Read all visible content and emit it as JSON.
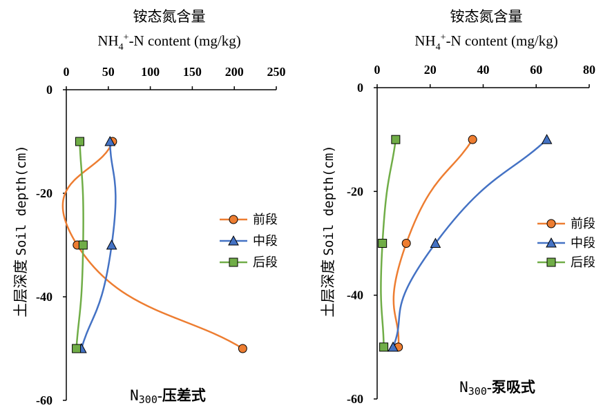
{
  "colors": {
    "front": "#ED7D31",
    "middle": "#4472C4",
    "back": "#70AD47",
    "axis": "#000000"
  },
  "chart_data": [
    {
      "type": "line",
      "title_zh": "铵态氮含量",
      "title_en_pre": "NH",
      "title_en_sub": "4",
      "title_en_sup": "+",
      "title_en_post": "-N content (mg/kg)",
      "ylabel_zh": "土层深度",
      "ylabel_en": "Soil depth(cm)",
      "subtitle_pre": "N",
      "subtitle_sub": "300",
      "subtitle_post": "-压差式",
      "xlim": [
        0,
        250
      ],
      "ylim": [
        -60,
        0
      ],
      "x_ticks": [
        0,
        50,
        100,
        150,
        200,
        250
      ],
      "x_tick_labels": [
        "0",
        "50",
        "100",
        "150",
        "200",
        "250"
      ],
      "y_ticks": [
        0,
        -20,
        -40,
        -60
      ],
      "y_tick_labels": [
        "0",
        "-20",
        "-40",
        "-60"
      ],
      "legend_position": "right",
      "series": [
        {
          "name": "前段",
          "marker": "circle",
          "color_key": "front",
          "x": [
            55,
            13,
            210
          ],
          "y": [
            -10,
            -30,
            -50
          ]
        },
        {
          "name": "中段",
          "marker": "triangle",
          "color_key": "middle",
          "x": [
            52,
            54,
            18
          ],
          "y": [
            -10,
            -30,
            -50
          ]
        },
        {
          "name": "后段",
          "marker": "square",
          "color_key": "back",
          "x": [
            16,
            20,
            12
          ],
          "y": [
            -10,
            -30,
            -50
          ]
        }
      ]
    },
    {
      "type": "line",
      "title_zh": "铵态氮含量",
      "title_en_pre": "NH",
      "title_en_sub": "4",
      "title_en_sup": "+",
      "title_en_post": "-N content (mg/kg)",
      "ylabel_zh": "土层深度",
      "ylabel_en": "Soil depth(cm)",
      "subtitle_pre": "N",
      "subtitle_sub": "300",
      "subtitle_post": "-泵吸式",
      "xlim": [
        0,
        80
      ],
      "ylim": [
        -60,
        0
      ],
      "x_ticks": [
        0,
        20,
        40,
        60,
        80
      ],
      "x_tick_labels": [
        "0",
        "20",
        "40",
        "60",
        "80"
      ],
      "y_ticks": [
        0,
        -20,
        -40,
        -60
      ],
      "y_tick_labels": [
        "0",
        "-20",
        "-40",
        "-60"
      ],
      "legend_position": "right",
      "series": [
        {
          "name": "前段",
          "marker": "circle",
          "color_key": "front",
          "x": [
            36,
            11,
            8
          ],
          "y": [
            -10,
            -30,
            -50
          ]
        },
        {
          "name": "中段",
          "marker": "triangle",
          "color_key": "middle",
          "x": [
            64,
            22,
            6
          ],
          "y": [
            -10,
            -30,
            -50
          ]
        },
        {
          "name": "后段",
          "marker": "square",
          "color_key": "back",
          "x": [
            7,
            2,
            2.5
          ],
          "y": [
            -10,
            -30,
            -50
          ]
        }
      ]
    }
  ]
}
